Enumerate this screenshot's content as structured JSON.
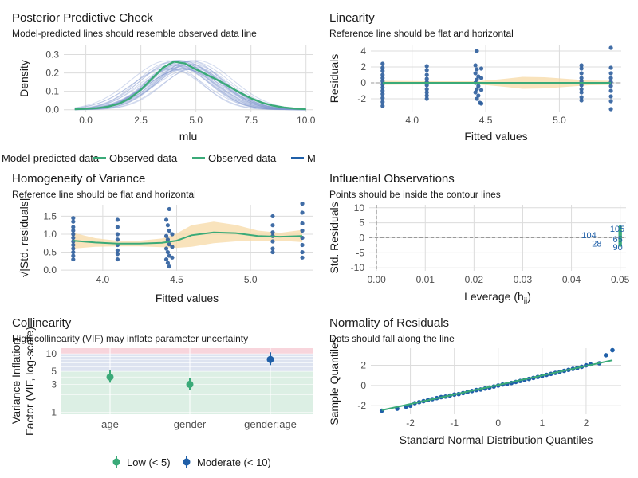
{
  "colors": {
    "green": "#3aaa78",
    "blue": "#1f5fa8",
    "point": "#2c5d9c",
    "band": "#f7d9a6",
    "grid": "#dcdcdc",
    "refline": "#999999",
    "zone_low": "#dcefe4",
    "zone_mod": "#dde3f0",
    "zone_high": "#f8d5dc"
  },
  "chart_data": [
    {
      "id": "ppc",
      "type": "line",
      "title": "Posterior Predictive Check",
      "subtitle": "Model-predicted lines should resemble observed data line",
      "xlabel": "mlu",
      "ylabel": "Density",
      "xlim": [
        -1,
        10.3
      ],
      "ylim": [
        -0.01,
        0.35
      ],
      "xticks": [
        0.0,
        2.5,
        5.0,
        7.5,
        10.0
      ],
      "xtick_labels": [
        "0.0",
        "2.5",
        "5.0",
        "7.5",
        "10.0"
      ],
      "yticks": [
        0.0,
        0.1,
        0.2,
        0.3
      ],
      "ytick_labels": [
        "0.0",
        "0.1",
        "0.2",
        "0.3"
      ],
      "grid": true,
      "observed_curve": {
        "x": [
          -0.5,
          0.5,
          1.0,
          1.5,
          2.0,
          2.5,
          3.0,
          3.5,
          4.0,
          4.5,
          5.0,
          5.5,
          6.0,
          6.5,
          7.0,
          7.5,
          8.0,
          8.5,
          9.0,
          9.5,
          10.0
        ],
        "y": [
          0.003,
          0.008,
          0.016,
          0.032,
          0.062,
          0.108,
          0.168,
          0.228,
          0.262,
          0.252,
          0.22,
          0.19,
          0.16,
          0.127,
          0.093,
          0.062,
          0.038,
          0.022,
          0.012,
          0.006,
          0.003
        ]
      },
      "predicted_lines": {
        "count": 30,
        "mean_center": 4.4,
        "mean_peak": 0.245,
        "x_range": [
          -0.5,
          10.0
        ]
      },
      "legend": {
        "placement": "bottom",
        "entries": [
          "Model-predicted data",
          "Observed data",
          "Observed data",
          "M"
        ]
      }
    },
    {
      "id": "linearity",
      "type": "scatter",
      "title": "Linearity",
      "subtitle": "Reference line should be flat and horizontal",
      "xlabel": "Fitted values",
      "ylabel": "Residuals",
      "xlim": [
        3.72,
        5.42
      ],
      "ylim": [
        -3.6,
        4.7
      ],
      "xticks": [
        4.0,
        4.5,
        5.0
      ],
      "xtick_labels": [
        "4.0",
        "4.5",
        "5.0"
      ],
      "yticks": [
        -2,
        0,
        2,
        4
      ],
      "ytick_labels": [
        "-2",
        "0",
        "2",
        "4"
      ],
      "grid": true,
      "clusters": [
        3.8,
        4.1,
        4.45,
        5.15,
        5.35
      ],
      "points": [
        [
          3.8,
          2.4
        ],
        [
          3.8,
          1.9
        ],
        [
          3.8,
          1.5
        ],
        [
          3.8,
          1.0
        ],
        [
          3.8,
          0.6
        ],
        [
          3.8,
          0.2
        ],
        [
          3.8,
          -0.2
        ],
        [
          3.8,
          -0.6
        ],
        [
          3.8,
          -1.0
        ],
        [
          3.8,
          -1.4
        ],
        [
          3.8,
          -1.9
        ],
        [
          3.8,
          -2.4
        ],
        [
          3.8,
          -2.9
        ],
        [
          4.1,
          2.1
        ],
        [
          4.1,
          1.6
        ],
        [
          4.1,
          1.0
        ],
        [
          4.1,
          0.5
        ],
        [
          4.1,
          0.1
        ],
        [
          4.1,
          -0.3
        ],
        [
          4.1,
          -0.8
        ],
        [
          4.1,
          -1.2
        ],
        [
          4.1,
          -1.6
        ],
        [
          4.1,
          -2.0
        ],
        [
          4.44,
          4.0
        ],
        [
          4.43,
          2.2
        ],
        [
          4.44,
          1.7
        ],
        [
          4.43,
          1.2
        ],
        [
          4.45,
          0.8
        ],
        [
          4.44,
          0.4
        ],
        [
          4.43,
          0.0
        ],
        [
          4.45,
          -0.4
        ],
        [
          4.44,
          -0.8
        ],
        [
          4.43,
          -1.2
        ],
        [
          4.45,
          -1.6
        ],
        [
          4.44,
          -2.0
        ],
        [
          4.46,
          -2.5
        ],
        [
          4.47,
          1.8
        ],
        [
          4.47,
          0.6
        ],
        [
          4.47,
          -0.9
        ],
        [
          4.47,
          -2.6
        ],
        [
          5.15,
          2.2
        ],
        [
          5.15,
          1.8
        ],
        [
          5.15,
          1.2
        ],
        [
          5.15,
          0.6
        ],
        [
          5.15,
          0.2
        ],
        [
          5.15,
          -0.3
        ],
        [
          5.15,
          -0.8
        ],
        [
          5.15,
          -1.2
        ],
        [
          5.15,
          -1.8
        ],
        [
          5.15,
          -2.2
        ],
        [
          5.35,
          4.4
        ],
        [
          5.35,
          1.9
        ],
        [
          5.35,
          1.2
        ],
        [
          5.35,
          0.6
        ],
        [
          5.35,
          0.1
        ],
        [
          5.35,
          -0.4
        ],
        [
          5.35,
          -1.0
        ],
        [
          5.35,
          -1.7
        ],
        [
          5.35,
          -2.3
        ],
        [
          5.35,
          -3.3
        ]
      ],
      "smooth_line": {
        "x": [
          3.8,
          5.35
        ],
        "y": [
          0.0,
          0.0
        ]
      },
      "band": {
        "x": [
          3.8,
          4.2,
          4.45,
          4.6,
          4.75,
          4.9,
          5.05,
          5.2,
          5.35
        ],
        "lower": [
          -0.25,
          -0.2,
          -0.2,
          -0.45,
          -0.75,
          -0.7,
          -0.5,
          -0.3,
          -0.25
        ],
        "upper": [
          0.25,
          0.2,
          0.2,
          0.45,
          0.75,
          0.7,
          0.5,
          0.3,
          0.25
        ]
      }
    },
    {
      "id": "homogeneity",
      "type": "scatter",
      "title": "Homogeneity of Variance",
      "subtitle": "Reference line should be flat and horizontal",
      "xlabel": "Fitted values",
      "ylabel": "√|Std. residuals|",
      "xlim": [
        3.72,
        5.42
      ],
      "ylim": [
        -0.02,
        1.82
      ],
      "xticks": [
        4.0,
        4.5,
        5.0
      ],
      "xtick_labels": [
        "4.0",
        "4.5",
        "5.0"
      ],
      "yticks": [
        0.0,
        0.5,
        1.0,
        1.5
      ],
      "ytick_labels": [
        "0.0",
        "0.5",
        "1.0",
        "1.5"
      ],
      "grid": true,
      "points": [
        [
          3.8,
          1.45
        ],
        [
          3.8,
          1.35
        ],
        [
          3.8,
          1.2
        ],
        [
          3.8,
          1.1
        ],
        [
          3.8,
          1.0
        ],
        [
          3.8,
          0.9
        ],
        [
          3.8,
          0.8
        ],
        [
          3.8,
          0.7
        ],
        [
          3.8,
          0.6
        ],
        [
          3.8,
          0.5
        ],
        [
          3.8,
          0.4
        ],
        [
          3.8,
          0.3
        ],
        [
          4.1,
          1.4
        ],
        [
          4.1,
          1.2
        ],
        [
          4.1,
          1.0
        ],
        [
          4.1,
          0.85
        ],
        [
          4.1,
          0.7
        ],
        [
          4.1,
          0.55
        ],
        [
          4.1,
          0.45
        ],
        [
          4.1,
          0.3
        ],
        [
          4.45,
          1.7
        ],
        [
          4.43,
          1.4
        ],
        [
          4.44,
          1.25
        ],
        [
          4.45,
          1.1
        ],
        [
          4.43,
          0.95
        ],
        [
          4.44,
          0.85
        ],
        [
          4.45,
          0.72
        ],
        [
          4.43,
          0.6
        ],
        [
          4.44,
          0.5
        ],
        [
          4.45,
          0.4
        ],
        [
          4.43,
          0.3
        ],
        [
          4.44,
          0.2
        ],
        [
          4.45,
          0.1
        ],
        [
          4.47,
          1.0
        ],
        [
          4.47,
          0.65
        ],
        [
          4.47,
          0.35
        ],
        [
          5.15,
          1.5
        ],
        [
          5.15,
          1.25
        ],
        [
          5.15,
          1.05
        ],
        [
          5.15,
          0.95
        ],
        [
          5.15,
          0.8
        ],
        [
          5.15,
          0.6
        ],
        [
          5.15,
          0.5
        ],
        [
          5.35,
          1.85
        ],
        [
          5.35,
          1.6
        ],
        [
          5.35,
          1.3
        ],
        [
          5.35,
          1.1
        ],
        [
          5.35,
          0.9
        ],
        [
          5.35,
          0.7
        ],
        [
          5.35,
          0.5
        ],
        [
          5.35,
          0.35
        ]
      ],
      "smooth_line": {
        "x": [
          3.8,
          3.95,
          4.1,
          4.25,
          4.4,
          4.5,
          4.6,
          4.75,
          4.9,
          5.05,
          5.2,
          5.35
        ],
        "y": [
          0.82,
          0.77,
          0.74,
          0.74,
          0.76,
          0.82,
          0.97,
          1.05,
          1.03,
          0.95,
          0.93,
          0.95
        ]
      },
      "band": {
        "x": [
          3.8,
          3.95,
          4.1,
          4.25,
          4.4,
          4.5,
          4.6,
          4.75,
          4.9,
          5.05,
          5.2,
          5.35
        ],
        "lower": [
          0.6,
          0.65,
          0.66,
          0.66,
          0.64,
          0.62,
          0.65,
          0.75,
          0.8,
          0.8,
          0.82,
          0.78
        ],
        "upper": [
          1.04,
          0.89,
          0.82,
          0.82,
          0.88,
          1.02,
          1.25,
          1.35,
          1.26,
          1.1,
          1.04,
          1.12
        ]
      }
    },
    {
      "id": "influential",
      "type": "scatter",
      "title": "Influential Observations",
      "subtitle": "Points should be inside the contour lines",
      "xlabel": "Leverage (h",
      "xlabel_sub": "ii",
      "xlabel_end": ")",
      "ylabel": "Std. Residuals",
      "xlim": [
        -0.0015,
        0.0512
      ],
      "ylim": [
        -11,
        11
      ],
      "xticks": [
        0.0,
        0.01,
        0.02,
        0.03,
        0.04,
        0.05
      ],
      "xtick_labels": [
        "0.00",
        "0.01",
        "0.02",
        "0.03",
        "0.04",
        "0.05"
      ],
      "yticks": [
        -10,
        -5,
        0,
        5,
        10
      ],
      "ytick_labels": [
        "-10",
        "-5",
        "0",
        "5",
        "10"
      ],
      "grid": true,
      "points_y": [
        3.6,
        3.0,
        2.4,
        2.0,
        1.6,
        1.2,
        0.8,
        0.4,
        0.0,
        -0.4,
        -0.8,
        -1.2,
        -1.6,
        -2.0,
        -2.4
      ],
      "points_x": 0.05,
      "labels": [
        {
          "text": "105",
          "x": 0.0494,
          "y": 3.0,
          "anchor": "middle"
        },
        {
          "text": "104",
          "x": 0.0451,
          "y": 0.9,
          "anchor": "end"
        },
        {
          "text": "65",
          "x": 0.0495,
          "y": -0.4,
          "anchor": "middle"
        },
        {
          "text": "28",
          "x": 0.0462,
          "y": -1.9,
          "anchor": "end"
        },
        {
          "text": "90",
          "x": 0.0495,
          "y": -3.0,
          "anchor": "middle"
        }
      ]
    },
    {
      "id": "collinearity",
      "type": "scatter",
      "title": "Collinearity",
      "subtitle": "High collinearity (VIF) may inflate parameter uncertainty",
      "ylabel_line1": "Variance Inflation",
      "ylabel_line2": "Factor (VIF, log-scale)",
      "y_scale": "log",
      "ylim": [
        0.92,
        12.5
      ],
      "yticks": [
        1,
        3,
        5,
        10
      ],
      "ytick_labels": [
        "1",
        "3",
        "5",
        "10"
      ],
      "categories": [
        "age",
        "gender",
        "gender:age"
      ],
      "values": [
        4.0,
        3.0,
        8.0
      ],
      "ci_low": [
        3.2,
        2.4,
        6.4
      ],
      "ci_high": [
        5.3,
        3.9,
        10.6
      ],
      "point_colors": [
        "green",
        "green",
        "blue"
      ],
      "zones": [
        {
          "from": 0.92,
          "to": 5,
          "color": "zone_low"
        },
        {
          "from": 5,
          "to": 10,
          "color": "zone_mod"
        },
        {
          "from": 10,
          "to": 12.5,
          "color": "zone_high"
        }
      ],
      "legend": {
        "placement": "bottom",
        "entries": [
          {
            "label": "Low (< 5)",
            "color": "green"
          },
          {
            "label": "Moderate (< 10)",
            "color": "blue"
          }
        ]
      }
    },
    {
      "id": "normality",
      "type": "scatter",
      "title": "Normality of Residuals",
      "subtitle": "Dots should fall along the line",
      "xlabel": "Standard Normal Distribution Quantiles",
      "ylabel": "Sample Quantiles",
      "xlim": [
        -2.9,
        2.8
      ],
      "ylim": [
        -2.85,
        3.7
      ],
      "xticks": [
        -2,
        -1,
        0,
        1,
        2
      ],
      "xtick_labels": [
        "-2",
        "-1",
        "0",
        "1",
        "2"
      ],
      "yticks": [
        -2,
        0,
        2
      ],
      "ytick_labels": [
        "-2",
        "0",
        "2"
      ],
      "grid": true,
      "points": [
        [
          -2.65,
          -2.5
        ],
        [
          -2.3,
          -2.3
        ],
        [
          -2.1,
          -2.1
        ],
        [
          -2.0,
          -2.0
        ],
        [
          -1.9,
          -1.75
        ],
        [
          -1.8,
          -1.65
        ],
        [
          -1.7,
          -1.55
        ],
        [
          -1.6,
          -1.45
        ],
        [
          -1.5,
          -1.35
        ],
        [
          -1.4,
          -1.25
        ],
        [
          -1.3,
          -1.15
        ],
        [
          -1.2,
          -1.1
        ],
        [
          -1.1,
          -1.0
        ],
        [
          -1.0,
          -0.9
        ],
        [
          -0.9,
          -0.85
        ],
        [
          -0.8,
          -0.75
        ],
        [
          -0.7,
          -0.65
        ],
        [
          -0.6,
          -0.55
        ],
        [
          -0.5,
          -0.45
        ],
        [
          -0.4,
          -0.4
        ],
        [
          -0.3,
          -0.3
        ],
        [
          -0.2,
          -0.2
        ],
        [
          -0.1,
          -0.1
        ],
        [
          0.0,
          0.0
        ],
        [
          0.1,
          0.1
        ],
        [
          0.2,
          0.15
        ],
        [
          0.3,
          0.25
        ],
        [
          0.4,
          0.35
        ],
        [
          0.5,
          0.45
        ],
        [
          0.6,
          0.55
        ],
        [
          0.7,
          0.65
        ],
        [
          0.8,
          0.75
        ],
        [
          0.9,
          0.85
        ],
        [
          1.0,
          0.95
        ],
        [
          1.1,
          1.05
        ],
        [
          1.2,
          1.15
        ],
        [
          1.3,
          1.25
        ],
        [
          1.4,
          1.35
        ],
        [
          1.5,
          1.45
        ],
        [
          1.6,
          1.55
        ],
        [
          1.7,
          1.65
        ],
        [
          1.8,
          1.75
        ],
        [
          1.9,
          1.85
        ],
        [
          2.0,
          2.0
        ],
        [
          2.1,
          2.1
        ],
        [
          2.3,
          2.2
        ],
        [
          2.45,
          3.0
        ],
        [
          2.6,
          3.5
        ]
      ],
      "ref_line": {
        "x": [
          -2.65,
          2.6
        ],
        "y": [
          -2.45,
          2.5
        ]
      }
    }
  ]
}
